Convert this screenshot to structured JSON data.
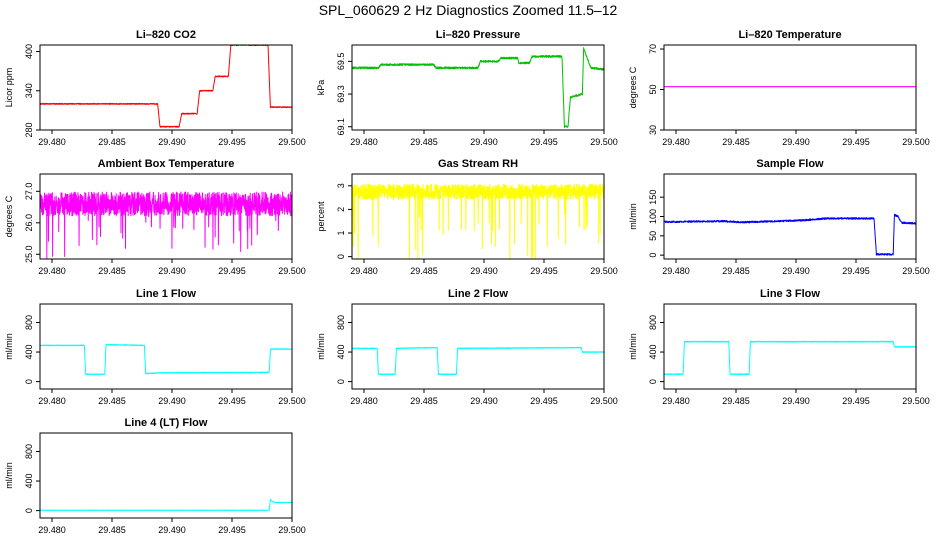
{
  "figure": {
    "title": "SPL_060629  2 Hz Diagnostics Zoomed 11.5–12"
  },
  "chart_data": [
    {
      "type": "line",
      "title": "Li–820 CO2",
      "ylabel": "Licor ppm",
      "color": "#ff0000",
      "xlim": [
        29.479,
        29.5
      ],
      "ylim": [
        280,
        410
      ],
      "xticks": [
        29.48,
        29.485,
        29.49,
        29.495,
        29.5
      ],
      "xtick_labels": [
        "29.480",
        "29.485",
        "29.490",
        "29.495",
        "29.500"
      ],
      "yticks": [
        280,
        340,
        400
      ],
      "ytick_labels": [
        "280",
        "340",
        "400"
      ],
      "noise": 0.8,
      "series": [
        {
          "x": [
            29.479,
            29.4888,
            29.489,
            29.4906,
            29.4908,
            29.4921,
            29.4923,
            29.4934,
            29.4936,
            29.4947,
            29.4949,
            29.498,
            29.4982,
            29.5
          ],
          "y": [
            320,
            320,
            285,
            285,
            305,
            305,
            340,
            340,
            362,
            362,
            410,
            410,
            315,
            315
          ]
        }
      ]
    },
    {
      "type": "line",
      "title": "Li–820 Pressure",
      "ylabel": "kPa",
      "color": "#00c000",
      "xlim": [
        29.479,
        29.5
      ],
      "ylim": [
        69.08,
        69.6
      ],
      "xticks": [
        29.48,
        29.485,
        29.49,
        29.495,
        29.5
      ],
      "xtick_labels": [
        "29.480",
        "29.485",
        "29.490",
        "29.495",
        "29.500"
      ],
      "yticks": [
        69.1,
        69.3,
        69.5
      ],
      "ytick_labels": [
        "69.1",
        "69.3",
        "69.5"
      ],
      "noise": 0.006,
      "series": [
        {
          "x": [
            29.479,
            29.4812,
            29.4814,
            29.4858,
            29.486,
            29.4895,
            29.4897,
            29.4912,
            29.4914,
            29.4928,
            29.4929,
            29.4938,
            29.494,
            29.4965,
            29.4967,
            29.497,
            29.4972,
            29.4982,
            29.4983,
            29.4987,
            29.4989,
            29.5
          ],
          "y": [
            69.46,
            69.46,
            69.48,
            69.48,
            69.46,
            69.46,
            69.5,
            69.5,
            69.52,
            69.52,
            69.49,
            69.49,
            69.53,
            69.53,
            69.1,
            69.1,
            69.28,
            69.3,
            69.58,
            69.5,
            69.46,
            69.45
          ]
        }
      ]
    },
    {
      "type": "line",
      "title": "Li–820 Temperature",
      "ylabel": "degrees C",
      "color": "#ff00ff",
      "xlim": [
        29.479,
        29.5
      ],
      "ylim": [
        30,
        72
      ],
      "xticks": [
        29.48,
        29.485,
        29.49,
        29.495,
        29.5
      ],
      "xtick_labels": [
        "29.480",
        "29.485",
        "29.490",
        "29.495",
        "29.500"
      ],
      "yticks": [
        30,
        50,
        70
      ],
      "ytick_labels": [
        "30",
        "50",
        "70"
      ],
      "noise": 0,
      "series": [
        {
          "x": [
            29.479,
            29.5
          ],
          "y": [
            51.4,
            51.4
          ]
        }
      ]
    },
    {
      "type": "line",
      "title": "Ambient Box Temperature",
      "ylabel": "degrees C",
      "color": "#ff00ff",
      "xlim": [
        29.479,
        29.5
      ],
      "ylim": [
        24.85,
        27.55
      ],
      "xticks": [
        29.48,
        29.485,
        29.49,
        29.495,
        29.5
      ],
      "xtick_labels": [
        "29.480",
        "29.485",
        "29.490",
        "29.495",
        "29.500"
      ],
      "yticks": [
        25,
        26,
        27
      ],
      "ytick_labels": [
        "25.0",
        "26.0",
        "27.0"
      ],
      "noise": 0.38,
      "spikes": {
        "count": 40,
        "depth": 0.9,
        "seed": 7
      },
      "series": [
        {
          "x": [
            29.479,
            29.5
          ],
          "y": [
            26.6,
            26.6
          ]
        }
      ]
    },
    {
      "type": "line",
      "title": "Gas Stream RH",
      "ylabel": "percent",
      "color": "#ffff00",
      "xlim": [
        29.479,
        29.5
      ],
      "ylim": [
        -0.1,
        3.5
      ],
      "xticks": [
        29.48,
        29.485,
        29.49,
        29.495,
        29.5
      ],
      "xtick_labels": [
        "29.480",
        "29.485",
        "29.490",
        "29.495",
        "29.500"
      ],
      "yticks": [
        0,
        1,
        2,
        3
      ],
      "ytick_labels": [
        "0",
        "1",
        "2",
        "3"
      ],
      "noise": 0.32,
      "spikes": {
        "count": 45,
        "depth": 1.8,
        "seed": 3
      },
      "series": [
        {
          "x": [
            29.479,
            29.5
          ],
          "y": [
            2.75,
            2.75
          ]
        }
      ]
    },
    {
      "type": "line",
      "title": "Sample Flow",
      "ylabel": "ml/min",
      "color": "#0000ff",
      "xlim": [
        29.479,
        29.5
      ],
      "ylim": [
        -10,
        210
      ],
      "xticks": [
        29.48,
        29.485,
        29.49,
        29.495,
        29.5
      ],
      "xtick_labels": [
        "29.480",
        "29.485",
        "29.490",
        "29.495",
        "29.500"
      ],
      "yticks": [
        0,
        50,
        100,
        150
      ],
      "ytick_labels": [
        "0",
        "50",
        "100",
        "150"
      ],
      "noise": 2.2,
      "series": [
        {
          "x": [
            29.479,
            29.484,
            29.4855,
            29.4905,
            29.4925,
            29.4965,
            29.4967,
            29.4981,
            29.4982,
            29.4985,
            29.4988,
            29.5
          ],
          "y": [
            86,
            88,
            85,
            90,
            95,
            95,
            2,
            2,
            104,
            100,
            84,
            82
          ]
        }
      ]
    },
    {
      "type": "line",
      "title": "Line 1 Flow",
      "ylabel": "ml/min",
      "color": "#00ffff",
      "xlim": [
        29.479,
        29.5
      ],
      "ylim": [
        -100,
        1050
      ],
      "xticks": [
        29.48,
        29.485,
        29.49,
        29.495,
        29.5
      ],
      "xtick_labels": [
        "29.480",
        "29.485",
        "29.490",
        "29.495",
        "29.500"
      ],
      "yticks": [
        0,
        400,
        800
      ],
      "ytick_labels": [
        "0",
        "400",
        "800"
      ],
      "noise": 5,
      "series": [
        {
          "x": [
            29.479,
            29.4827,
            29.4828,
            29.4844,
            29.4845,
            29.4877,
            29.4878,
            29.4893,
            29.4981,
            29.4982,
            29.5
          ],
          "y": [
            490,
            490,
            100,
            100,
            500,
            490,
            110,
            120,
            125,
            440,
            440
          ]
        }
      ]
    },
    {
      "type": "line",
      "title": "Line 2 Flow",
      "ylabel": "ml/min",
      "color": "#00ffff",
      "xlim": [
        29.479,
        29.5
      ],
      "ylim": [
        -100,
        1050
      ],
      "xticks": [
        29.48,
        29.485,
        29.49,
        29.495,
        29.5
      ],
      "xtick_labels": [
        "29.480",
        "29.485",
        "29.490",
        "29.495",
        "29.500"
      ],
      "yticks": [
        0,
        400,
        800
      ],
      "ytick_labels": [
        "0",
        "400",
        "800"
      ],
      "noise": 5,
      "series": [
        {
          "x": [
            29.479,
            29.4811,
            29.4812,
            29.4826,
            29.4827,
            29.4861,
            29.4862,
            29.4877,
            29.4878,
            29.4981,
            29.4982,
            29.5
          ],
          "y": [
            450,
            450,
            100,
            100,
            450,
            460,
            100,
            100,
            450,
            460,
            400,
            400
          ]
        }
      ]
    },
    {
      "type": "line",
      "title": "Line 3 Flow",
      "ylabel": "ml/min",
      "color": "#00ffff",
      "xlim": [
        29.479,
        29.5
      ],
      "ylim": [
        -100,
        1050
      ],
      "xticks": [
        29.48,
        29.485,
        29.49,
        29.495,
        29.5
      ],
      "xtick_labels": [
        "29.480",
        "29.485",
        "29.490",
        "29.495",
        "29.500"
      ],
      "yticks": [
        0,
        400,
        800
      ],
      "ytick_labels": [
        "0",
        "400",
        "800"
      ],
      "noise": 6,
      "series": [
        {
          "x": [
            29.479,
            29.4806,
            29.4807,
            29.4844,
            29.4845,
            29.4861,
            29.4862,
            29.4981,
            29.4982,
            29.5
          ],
          "y": [
            100,
            100,
            540,
            540,
            100,
            100,
            540,
            540,
            470,
            470
          ]
        }
      ]
    },
    {
      "type": "line",
      "title": "Line 4 (LT) Flow",
      "ylabel": "ml/min",
      "color": "#00ffff",
      "xlim": [
        29.479,
        29.5
      ],
      "ylim": [
        -100,
        1050
      ],
      "xticks": [
        29.48,
        29.485,
        29.49,
        29.495,
        29.5
      ],
      "xtick_labels": [
        "29.480",
        "29.485",
        "29.490",
        "29.495",
        "29.500"
      ],
      "yticks": [
        0,
        400,
        800
      ],
      "ytick_labels": [
        "0",
        "400",
        "800"
      ],
      "noise": 3,
      "series": [
        {
          "x": [
            29.479,
            29.4981,
            29.4982,
            29.4984,
            29.4986,
            29.5
          ],
          "y": [
            5,
            5,
            150,
            120,
            110,
            110
          ]
        }
      ]
    }
  ]
}
